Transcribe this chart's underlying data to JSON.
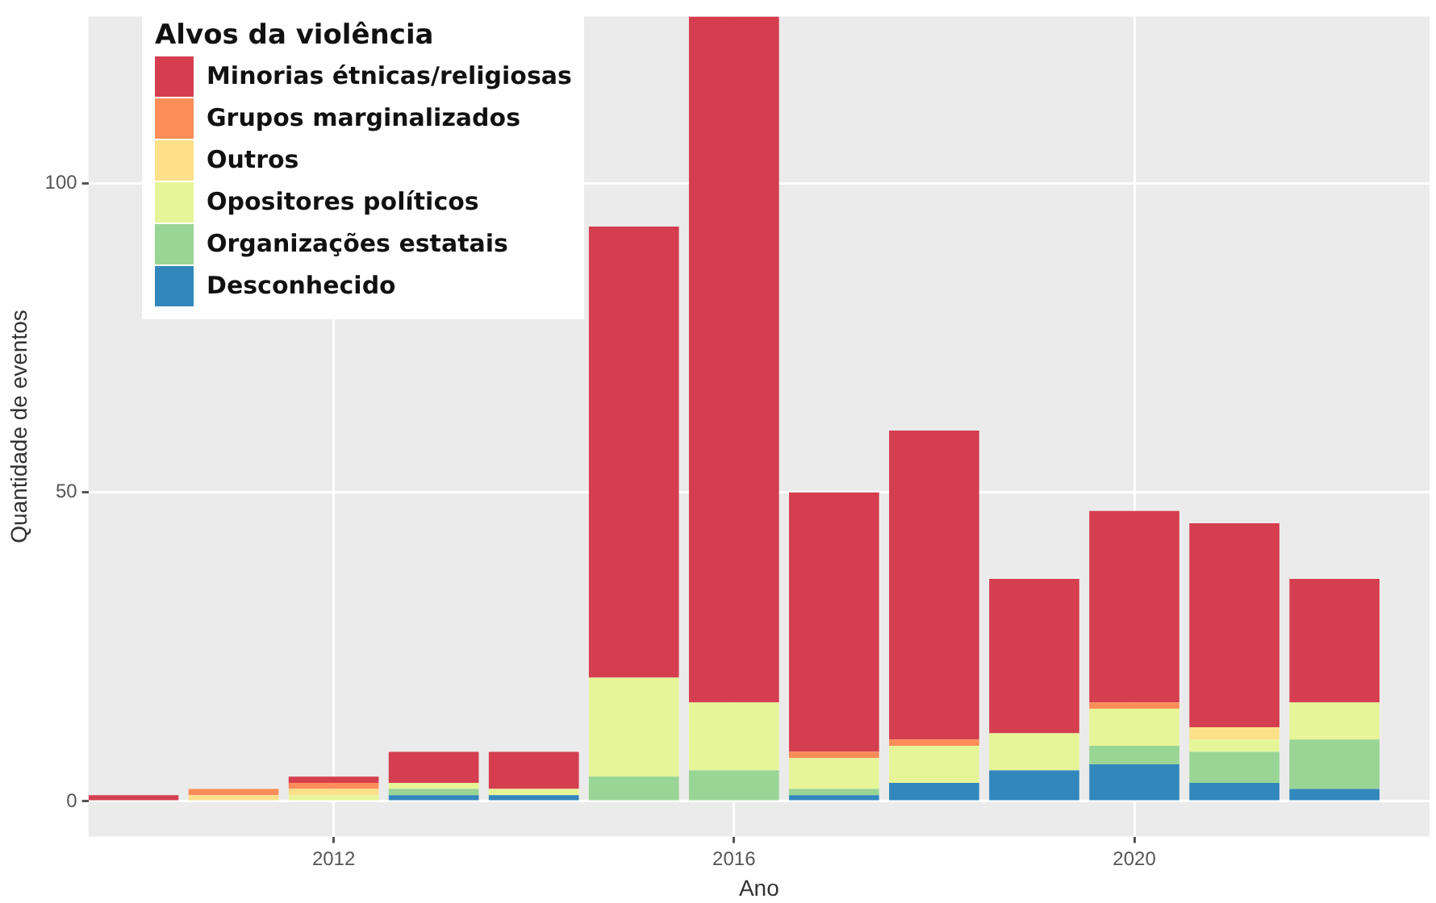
{
  "chart_data": {
    "type": "bar",
    "stacked": true,
    "xlabel": "Ano",
    "ylabel": "Quantidade de eventos",
    "legend_title": "Alvos da violência",
    "legend": "top left",
    "grid": true,
    "x": [
      2010,
      2011,
      2012,
      2013,
      2014,
      2015,
      2016,
      2017,
      2018,
      2019,
      2020,
      2021,
      2022
    ],
    "xlim": [
      2009.55,
      2022.95
    ],
    "xticks": [
      2012,
      2016,
      2020
    ],
    "ylim": [
      -5.7,
      127
    ],
    "yticks": [
      0,
      50,
      100
    ],
    "series": [
      {
        "name": "Desconhecido",
        "color": "#3288bd",
        "values": [
          0,
          0,
          0,
          1,
          1,
          0,
          0,
          1,
          3,
          5,
          6,
          3,
          2
        ]
      },
      {
        "name": "Organizações estatais",
        "color": "#99d594",
        "values": [
          0,
          0,
          0,
          1,
          0,
          4,
          5,
          1,
          0,
          0,
          3,
          5,
          8
        ]
      },
      {
        "name": "Opositores políticos",
        "color": "#e6f598",
        "values": [
          0,
          0,
          1,
          1,
          1,
          16,
          11,
          5,
          6,
          6,
          6,
          2,
          6
        ]
      },
      {
        "name": "Outros",
        "color": "#fee08b",
        "values": [
          0,
          1,
          1,
          0,
          0,
          0,
          0,
          0,
          0,
          0,
          0,
          2,
          0
        ]
      },
      {
        "name": "Grupos marginalizados",
        "color": "#fc8d59",
        "values": [
          0,
          1,
          1,
          0,
          0,
          0,
          0,
          1,
          1,
          0,
          1,
          0,
          0
        ]
      },
      {
        "name": "Minorias étnicas/religiosas",
        "color": "#d53e4f",
        "values": [
          1,
          0,
          1,
          5,
          6,
          73,
          111,
          42,
          50,
          25,
          31,
          33,
          20
        ]
      }
    ]
  }
}
